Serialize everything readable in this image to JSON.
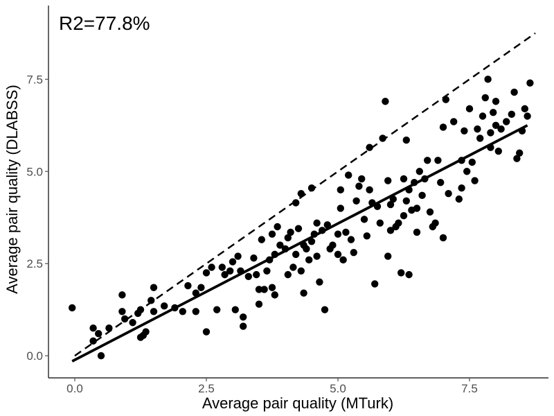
{
  "chart_data": {
    "type": "scatter",
    "title": "",
    "annotation": "R2=77.8%",
    "xlabel": "Average pair quality (MTurk)",
    "ylabel": "Average pair quality (DLABSS)",
    "xlim": [
      -0.5,
      9.0
    ],
    "ylim": [
      -0.6,
      9.5
    ],
    "xticks": [
      0.0,
      2.5,
      5.0,
      7.5
    ],
    "xtick_labels": [
      "0.0",
      "2.5",
      "5.0",
      "7.5"
    ],
    "yticks": [
      0.0,
      2.5,
      5.0,
      7.5
    ],
    "ytick_labels": [
      "0.0",
      "2.5",
      "5.0",
      "7.5"
    ],
    "grid": false,
    "colors": {
      "points": "#000000",
      "lines": "#000000",
      "axis": "#000000",
      "ticks": "#4d4d4d"
    },
    "reference_line": {
      "style": "dashed",
      "x": [
        0.0,
        8.75
      ],
      "y": [
        0.0,
        8.75
      ]
    },
    "fit_line": {
      "style": "solid",
      "x": [
        -0.05,
        8.6
      ],
      "y": [
        -0.15,
        6.25
      ]
    },
    "points": [
      {
        "x": -0.05,
        "y": 1.3
      },
      {
        "x": 0.35,
        "y": 0.75
      },
      {
        "x": 0.35,
        "y": 0.4
      },
      {
        "x": 0.45,
        "y": 0.6
      },
      {
        "x": 0.5,
        "y": 0.0
      },
      {
        "x": 0.65,
        "y": 0.75
      },
      {
        "x": 0.9,
        "y": 1.65
      },
      {
        "x": 0.9,
        "y": 1.2
      },
      {
        "x": 0.95,
        "y": 1.0
      },
      {
        "x": 1.1,
        "y": 0.9
      },
      {
        "x": 1.2,
        "y": 1.15
      },
      {
        "x": 1.25,
        "y": 0.5
      },
      {
        "x": 1.25,
        "y": 1.25
      },
      {
        "x": 1.3,
        "y": 0.55
      },
      {
        "x": 1.35,
        "y": 0.65
      },
      {
        "x": 1.45,
        "y": 1.5
      },
      {
        "x": 1.5,
        "y": 1.85
      },
      {
        "x": 1.5,
        "y": 1.2
      },
      {
        "x": 1.7,
        "y": 1.35
      },
      {
        "x": 1.9,
        "y": 1.3
      },
      {
        "x": 2.05,
        "y": 1.2
      },
      {
        "x": 2.15,
        "y": 1.9
      },
      {
        "x": 2.3,
        "y": 1.7
      },
      {
        "x": 2.3,
        "y": 1.2
      },
      {
        "x": 2.4,
        "y": 1.85
      },
      {
        "x": 2.5,
        "y": 2.25
      },
      {
        "x": 2.5,
        "y": 0.65
      },
      {
        "x": 2.6,
        "y": 2.4
      },
      {
        "x": 2.7,
        "y": 1.25
      },
      {
        "x": 2.8,
        "y": 2.4
      },
      {
        "x": 2.85,
        "y": 2.2
      },
      {
        "x": 2.95,
        "y": 2.3
      },
      {
        "x": 3.0,
        "y": 2.55
      },
      {
        "x": 3.05,
        "y": 1.25
      },
      {
        "x": 3.1,
        "y": 2.7
      },
      {
        "x": 3.15,
        "y": 2.3
      },
      {
        "x": 3.2,
        "y": 1.05
      },
      {
        "x": 3.2,
        "y": 0.8
      },
      {
        "x": 3.3,
        "y": 2.15
      },
      {
        "x": 3.4,
        "y": 2.65
      },
      {
        "x": 3.45,
        "y": 2.2
      },
      {
        "x": 3.5,
        "y": 1.8
      },
      {
        "x": 3.5,
        "y": 1.4
      },
      {
        "x": 3.55,
        "y": 3.15
      },
      {
        "x": 3.6,
        "y": 1.8
      },
      {
        "x": 3.65,
        "y": 2.3
      },
      {
        "x": 3.7,
        "y": 2.6
      },
      {
        "x": 3.75,
        "y": 3.3
      },
      {
        "x": 3.75,
        "y": 1.85
      },
      {
        "x": 3.8,
        "y": 1.65
      },
      {
        "x": 3.8,
        "y": 2.75
      },
      {
        "x": 3.85,
        "y": 3.5
      },
      {
        "x": 3.9,
        "y": 3.0
      },
      {
        "x": 4.0,
        "y": 2.9
      },
      {
        "x": 4.05,
        "y": 2.2
      },
      {
        "x": 4.05,
        "y": 3.2
      },
      {
        "x": 4.1,
        "y": 3.35
      },
      {
        "x": 4.15,
        "y": 2.4
      },
      {
        "x": 4.2,
        "y": 2.75
      },
      {
        "x": 4.2,
        "y": 4.15
      },
      {
        "x": 4.25,
        "y": 3.45
      },
      {
        "x": 4.3,
        "y": 2.3
      },
      {
        "x": 4.3,
        "y": 4.4
      },
      {
        "x": 4.35,
        "y": 1.7
      },
      {
        "x": 4.35,
        "y": 3.0
      },
      {
        "x": 4.4,
        "y": 2.9
      },
      {
        "x": 4.45,
        "y": 2.6
      },
      {
        "x": 4.5,
        "y": 3.1
      },
      {
        "x": 4.5,
        "y": 4.55
      },
      {
        "x": 4.55,
        "y": 3.3
      },
      {
        "x": 4.6,
        "y": 2.7
      },
      {
        "x": 4.6,
        "y": 3.6
      },
      {
        "x": 4.65,
        "y": 2.0
      },
      {
        "x": 4.7,
        "y": 3.4
      },
      {
        "x": 4.75,
        "y": 1.25
      },
      {
        "x": 4.8,
        "y": 3.55
      },
      {
        "x": 4.85,
        "y": 2.9
      },
      {
        "x": 4.9,
        "y": 3.0
      },
      {
        "x": 5.0,
        "y": 3.3
      },
      {
        "x": 5.0,
        "y": 2.75
      },
      {
        "x": 5.05,
        "y": 4.0
      },
      {
        "x": 5.05,
        "y": 4.5
      },
      {
        "x": 5.1,
        "y": 2.6
      },
      {
        "x": 5.15,
        "y": 3.35
      },
      {
        "x": 5.2,
        "y": 4.9
      },
      {
        "x": 5.25,
        "y": 3.15
      },
      {
        "x": 5.3,
        "y": 2.8
      },
      {
        "x": 5.35,
        "y": 4.2
      },
      {
        "x": 5.4,
        "y": 4.6
      },
      {
        "x": 5.45,
        "y": 4.8
      },
      {
        "x": 5.5,
        "y": 3.7
      },
      {
        "x": 5.55,
        "y": 3.25
      },
      {
        "x": 5.6,
        "y": 4.5
      },
      {
        "x": 5.6,
        "y": 5.65
      },
      {
        "x": 5.65,
        "y": 4.15
      },
      {
        "x": 5.7,
        "y": 1.95
      },
      {
        "x": 5.75,
        "y": 4.05
      },
      {
        "x": 5.8,
        "y": 3.6
      },
      {
        "x": 5.85,
        "y": 5.9
      },
      {
        "x": 5.9,
        "y": 6.9
      },
      {
        "x": 5.95,
        "y": 2.7
      },
      {
        "x": 5.95,
        "y": 4.75
      },
      {
        "x": 6.0,
        "y": 4.1
      },
      {
        "x": 6.0,
        "y": 3.4
      },
      {
        "x": 6.05,
        "y": 4.25
      },
      {
        "x": 6.1,
        "y": 3.5
      },
      {
        "x": 6.15,
        "y": 3.6
      },
      {
        "x": 6.2,
        "y": 2.25
      },
      {
        "x": 6.25,
        "y": 3.8
      },
      {
        "x": 6.25,
        "y": 4.8
      },
      {
        "x": 6.3,
        "y": 5.85
      },
      {
        "x": 6.3,
        "y": 4.2
      },
      {
        "x": 6.35,
        "y": 2.2
      },
      {
        "x": 6.35,
        "y": 4.5
      },
      {
        "x": 6.4,
        "y": 3.95
      },
      {
        "x": 6.45,
        "y": 4.7
      },
      {
        "x": 6.5,
        "y": 4.0
      },
      {
        "x": 6.5,
        "y": 3.35
      },
      {
        "x": 6.55,
        "y": 5.0
      },
      {
        "x": 6.6,
        "y": 4.35
      },
      {
        "x": 6.65,
        "y": 4.8
      },
      {
        "x": 6.7,
        "y": 5.3
      },
      {
        "x": 6.75,
        "y": 3.9
      },
      {
        "x": 6.8,
        "y": 3.5
      },
      {
        "x": 6.85,
        "y": 3.6
      },
      {
        "x": 6.9,
        "y": 5.3
      },
      {
        "x": 6.95,
        "y": 4.7
      },
      {
        "x": 7.0,
        "y": 3.2
      },
      {
        "x": 7.0,
        "y": 6.2
      },
      {
        "x": 7.05,
        "y": 6.95
      },
      {
        "x": 7.1,
        "y": 4.4
      },
      {
        "x": 7.2,
        "y": 6.35
      },
      {
        "x": 7.3,
        "y": 4.25
      },
      {
        "x": 7.35,
        "y": 5.3
      },
      {
        "x": 7.35,
        "y": 4.55
      },
      {
        "x": 7.4,
        "y": 6.1
      },
      {
        "x": 7.45,
        "y": 5.0
      },
      {
        "x": 7.5,
        "y": 6.7
      },
      {
        "x": 7.55,
        "y": 5.25
      },
      {
        "x": 7.6,
        "y": 4.75
      },
      {
        "x": 7.65,
        "y": 6.15
      },
      {
        "x": 7.7,
        "y": 5.9
      },
      {
        "x": 7.75,
        "y": 6.5
      },
      {
        "x": 7.8,
        "y": 7.0
      },
      {
        "x": 7.85,
        "y": 7.5
      },
      {
        "x": 7.9,
        "y": 5.65
      },
      {
        "x": 7.9,
        "y": 6.05
      },
      {
        "x": 7.95,
        "y": 6.6
      },
      {
        "x": 8.0,
        "y": 6.25
      },
      {
        "x": 8.0,
        "y": 6.9
      },
      {
        "x": 8.05,
        "y": 5.55
      },
      {
        "x": 8.1,
        "y": 6.15
      },
      {
        "x": 8.2,
        "y": 6.35
      },
      {
        "x": 8.3,
        "y": 6.55
      },
      {
        "x": 8.35,
        "y": 7.15
      },
      {
        "x": 8.4,
        "y": 5.35
      },
      {
        "x": 8.45,
        "y": 5.5
      },
      {
        "x": 8.5,
        "y": 6.1
      },
      {
        "x": 8.55,
        "y": 6.7
      },
      {
        "x": 8.6,
        "y": 6.5
      },
      {
        "x": 8.65,
        "y": 7.4
      }
    ]
  }
}
